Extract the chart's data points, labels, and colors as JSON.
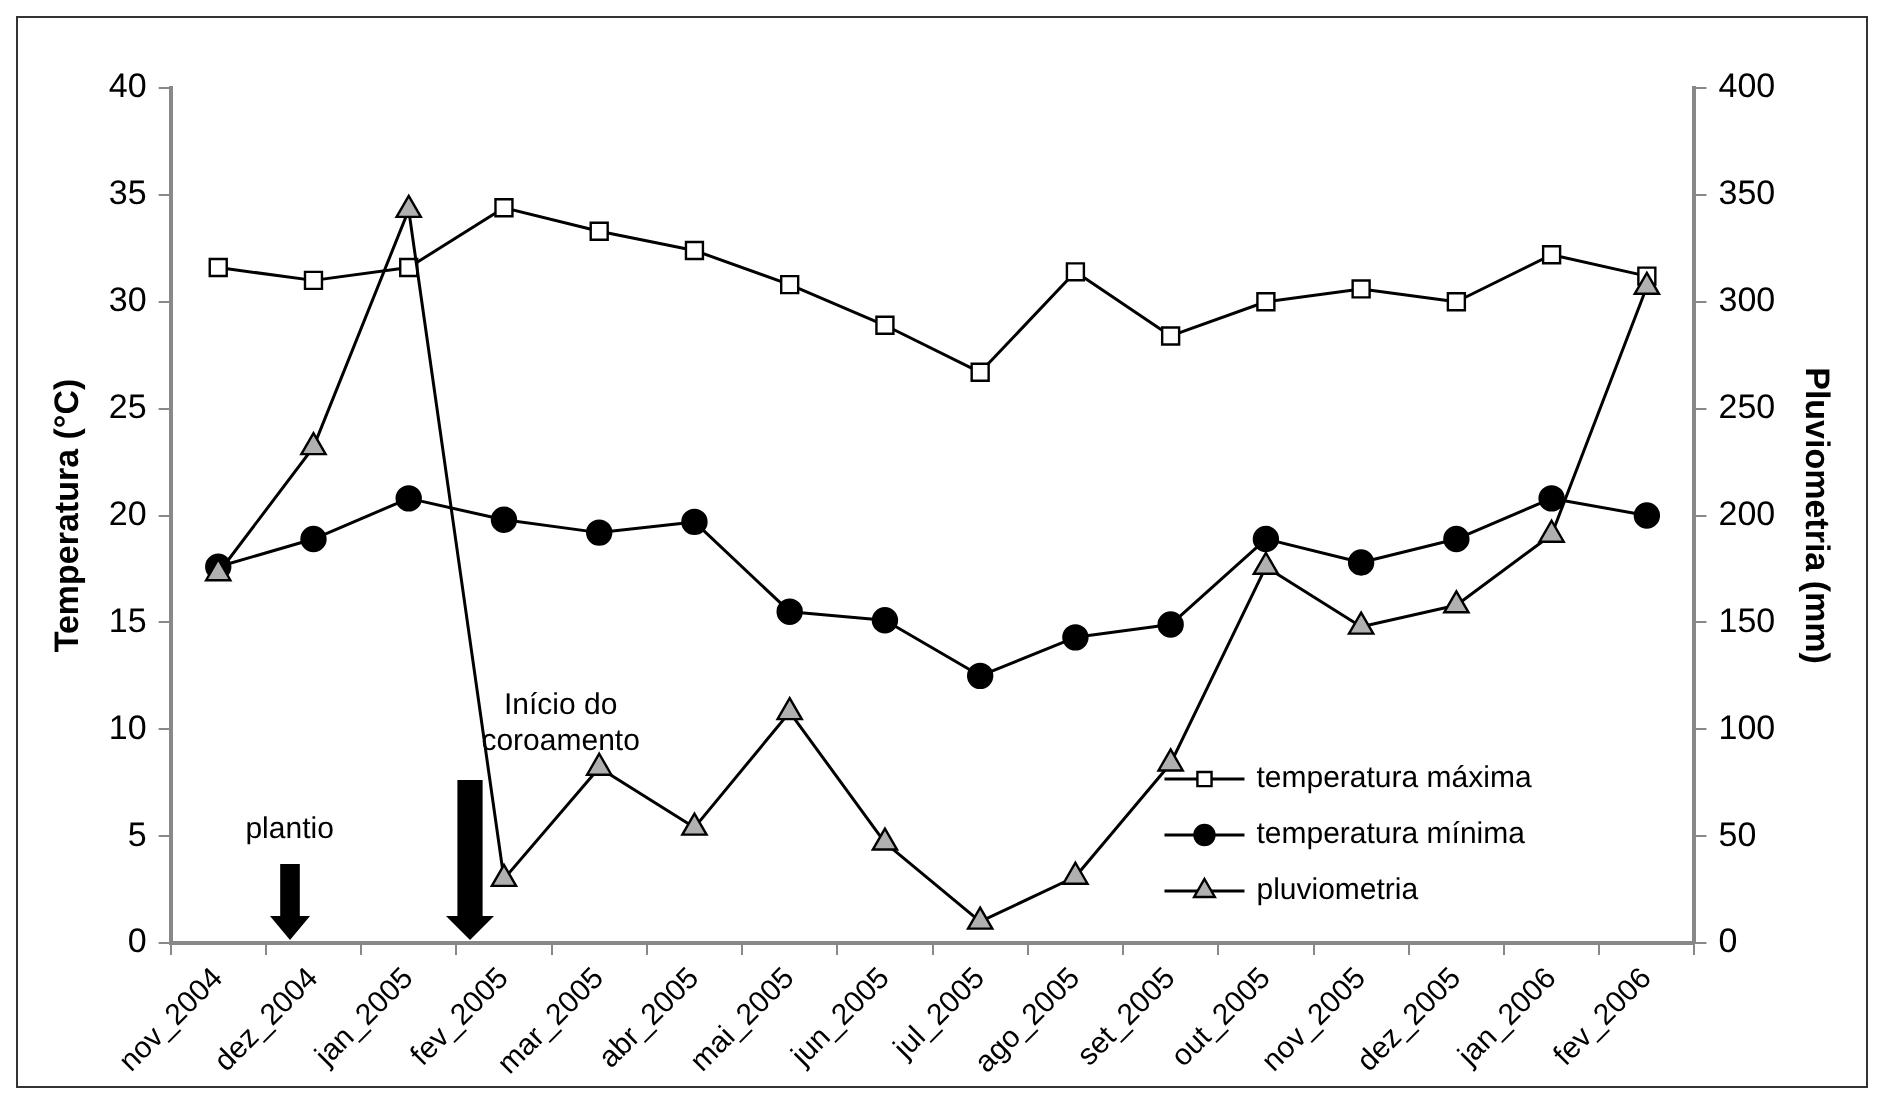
{
  "chart_data": {
    "type": "line",
    "ylabel": "Temperatura (°C)",
    "y2label": "Pluviometria (mm)",
    "categories": [
      "nov_2004",
      "dez_2004",
      "jan_2005",
      "fev_2005",
      "mar_2005",
      "abr_2005",
      "mai_2005",
      "jun_2005",
      "jul_2005",
      "ago_2005",
      "set_2005",
      "out_2005",
      "nov_2005",
      "dez_2005",
      "jan_2006",
      "fev_2006"
    ],
    "series": [
      {
        "name": "temperatura máxima",
        "color": "#000000",
        "marker": "square",
        "values": [
          31.6,
          31,
          31.6,
          34.4,
          33.3,
          32.4,
          30.8,
          28.9,
          26.7,
          31.4,
          28.4,
          30,
          30.6,
          30,
          32.2,
          31.2
        ]
      },
      {
        "name": "temperatura mínima",
        "color": "#000000",
        "marker": "circle",
        "values": [
          17.6,
          18.9,
          20.8,
          19.8,
          19.2,
          19.7,
          15.5,
          15.1,
          12.5,
          14.3,
          14.9,
          18.9,
          17.8,
          18.9,
          20.8,
          20
        ]
      },
      {
        "name": "pluviometria",
        "color": "#000000",
        "marker": "triangle",
        "axis": "y2",
        "values": [
          173,
          232,
          343,
          30,
          82,
          54,
          108,
          47,
          10,
          31,
          84,
          176,
          148,
          158,
          191,
          307
        ]
      }
    ],
    "ylim": [
      0,
      40
    ],
    "yticks": [
      0,
      5,
      10,
      15,
      20,
      25,
      30,
      35,
      40
    ],
    "y2lim": [
      0,
      400
    ],
    "y2ticks": [
      0,
      50,
      100,
      150,
      200,
      250,
      300,
      350,
      400
    ],
    "grid": false,
    "legend": "bottom right",
    "line_style": "solid",
    "annotations": [
      "plantio",
      "Início do coroamento"
    ]
  }
}
